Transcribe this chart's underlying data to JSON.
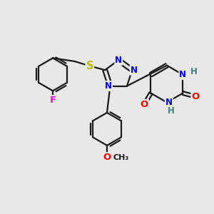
{
  "bg_color": "#e8e8e8",
  "bond_color": "#1a1a1a",
  "bond_width": 1.6,
  "atom_colors": {
    "N": "#0000cc",
    "O": "#ff0000",
    "S": "#bbbb00",
    "F": "#ee00ee",
    "H": "#408080",
    "C": "#1a1a1a"
  },
  "font_size": 8.5,
  "xlim": [
    0,
    10
  ],
  "ylim": [
    0,
    10
  ]
}
